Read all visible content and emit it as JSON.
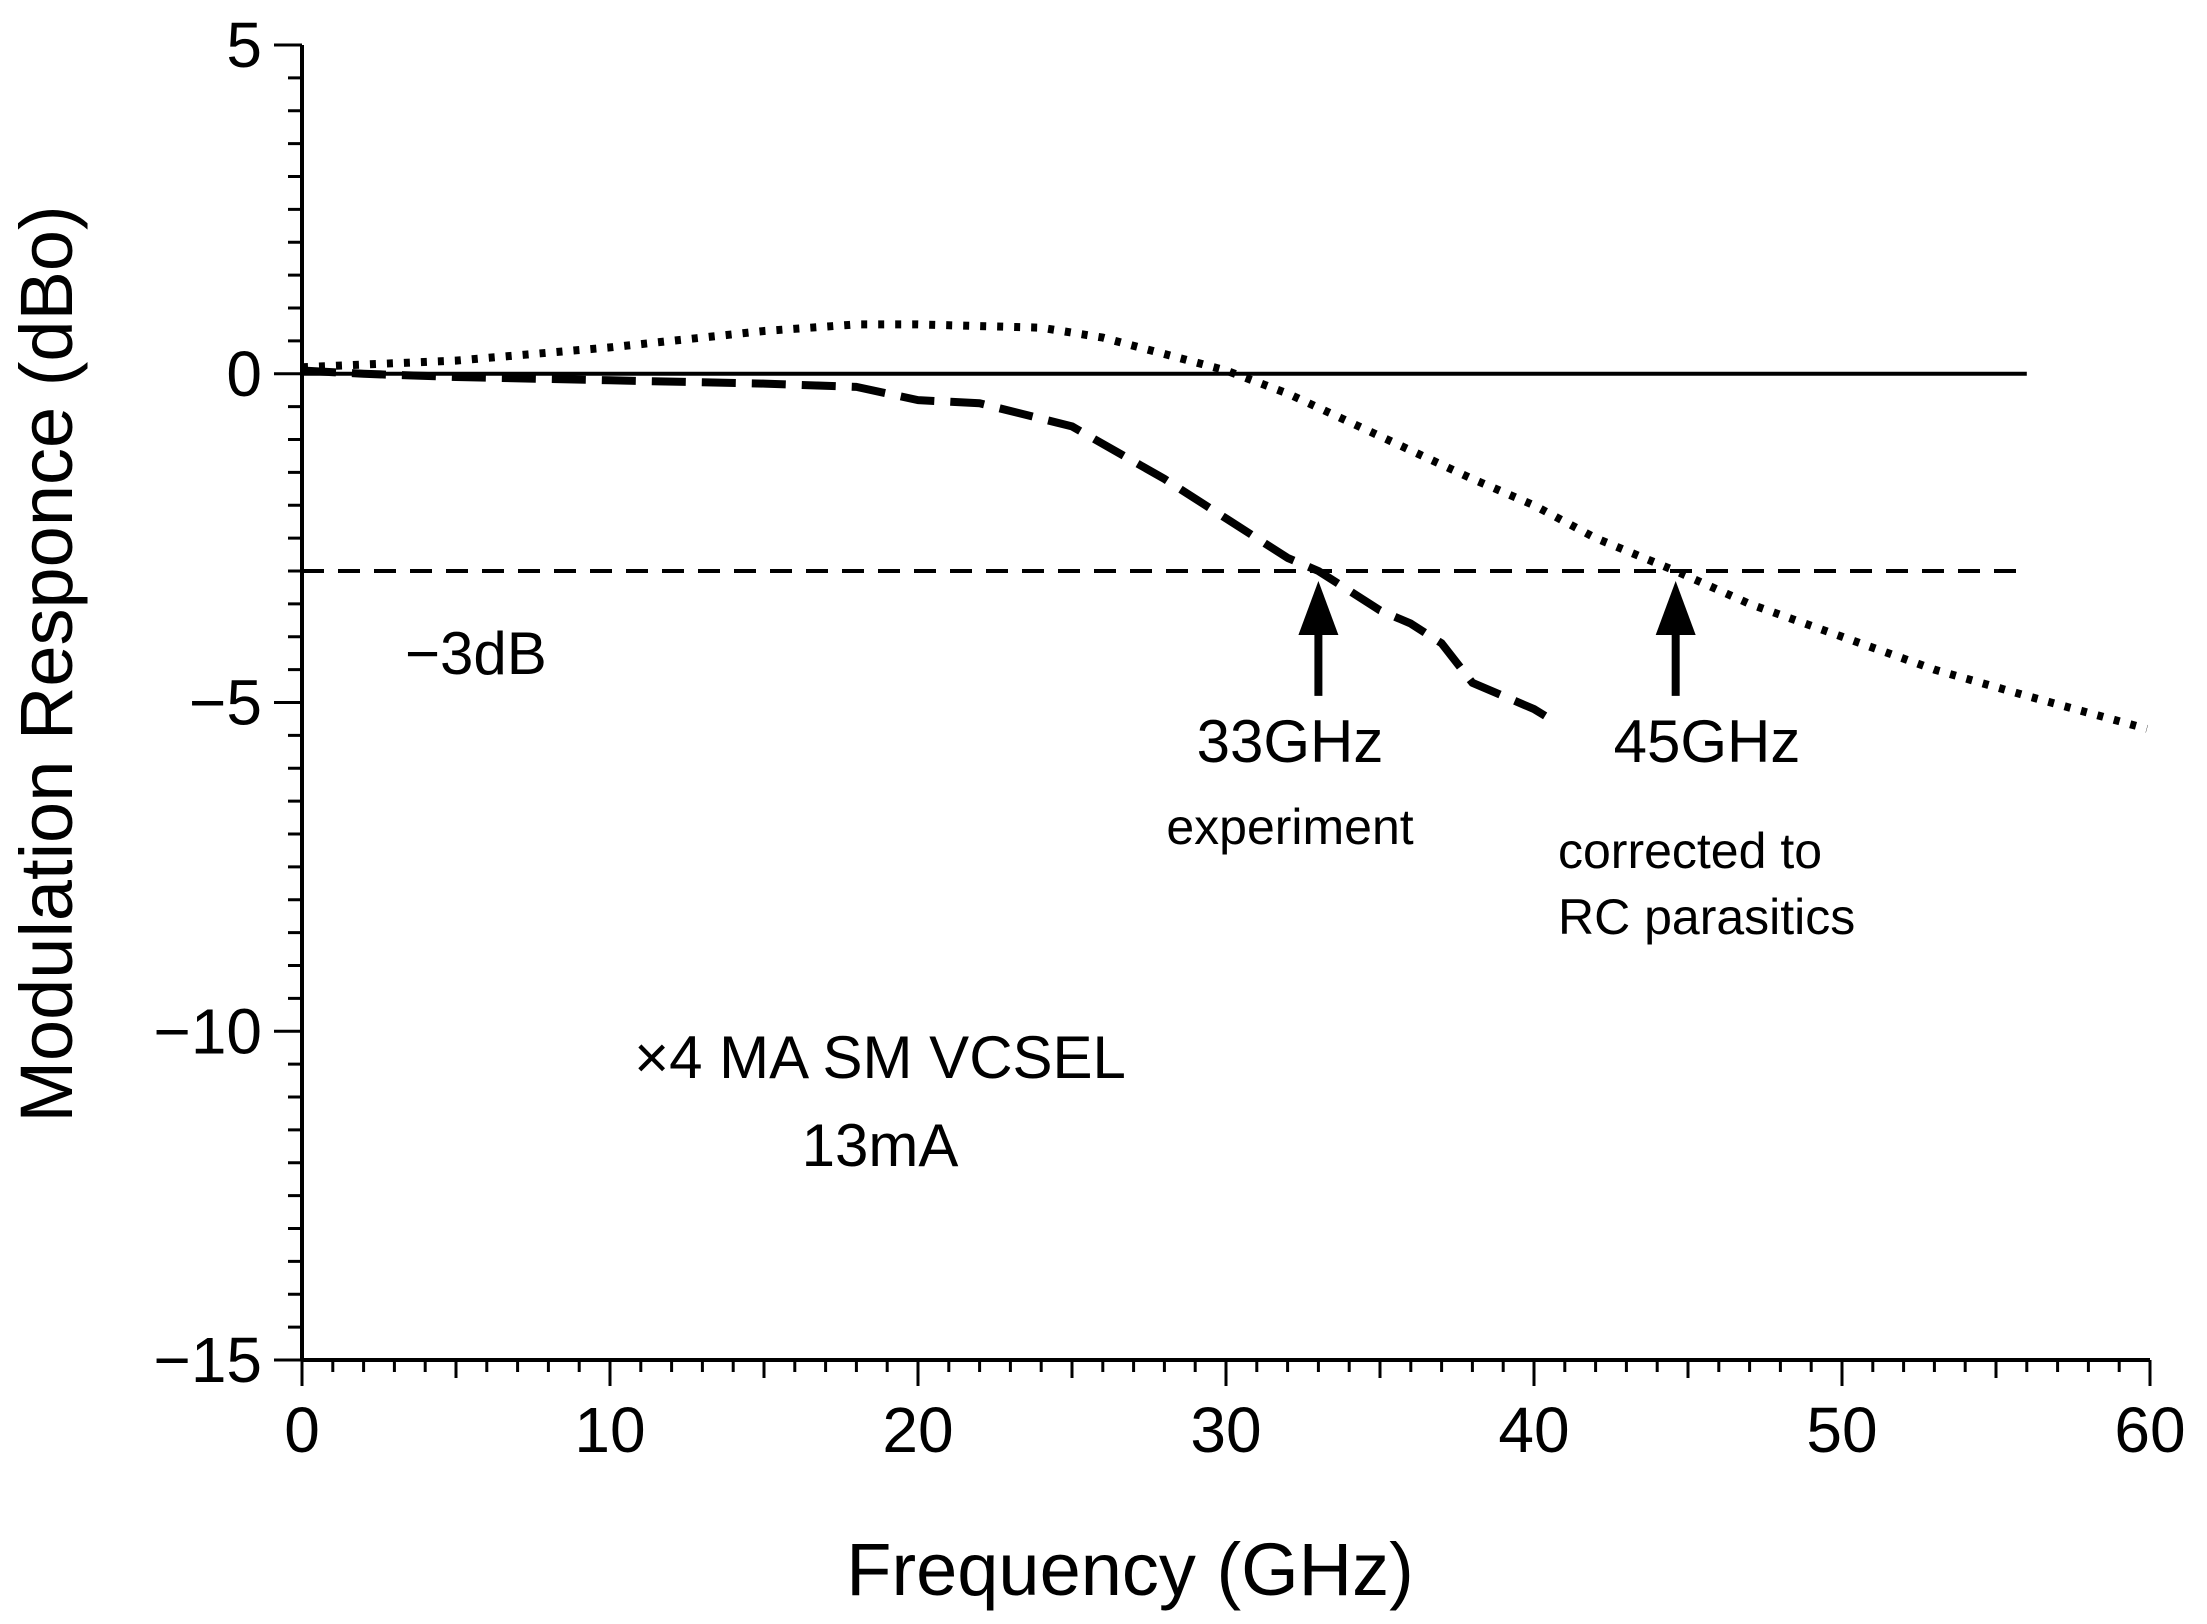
{
  "chart_data": {
    "type": "line",
    "title": "",
    "xlabel": "Frequency (GHz)",
    "ylabel": "Modulation Responce (dBo)",
    "xlim": [
      0,
      60
    ],
    "ylim": [
      -15,
      5
    ],
    "x_ticks": [
      0,
      10,
      20,
      30,
      40,
      50,
      60
    ],
    "x_tick_labels": [
      "0",
      "10",
      "20",
      "30",
      "40",
      "50",
      "60"
    ],
    "y_ticks": [
      5,
      0,
      -5,
      -10,
      -15
    ],
    "y_tick_labels": [
      "5",
      "0",
      "−5",
      "−10",
      "−15"
    ],
    "grid": false,
    "reference_lines": [
      {
        "y": 0,
        "x_range": [
          0,
          56
        ],
        "style": "solid"
      },
      {
        "y": -3,
        "x_range": [
          0,
          56
        ],
        "style": "dashed"
      }
    ],
    "series": [
      {
        "style": "dashed",
        "x": [
          0,
          2,
          5,
          10,
          15,
          18,
          20,
          22,
          25,
          28,
          30,
          32,
          33,
          34,
          35,
          36,
          37,
          38,
          39,
          40,
          40.7
        ],
        "y": [
          0.05,
          0.0,
          -0.05,
          -0.1,
          -0.15,
          -0.2,
          -0.4,
          -0.45,
          -0.8,
          -1.6,
          -2.2,
          -2.8,
          -3.0,
          -3.3,
          -3.6,
          -3.8,
          -4.1,
          -4.7,
          -4.9,
          -5.1,
          -5.3
        ]
      },
      {
        "style": "dotted",
        "x": [
          0,
          5,
          10,
          15,
          18,
          20,
          24,
          26,
          28,
          30,
          32,
          35,
          38,
          40,
          42,
          44.6,
          47,
          50,
          53,
          56,
          59.9
        ],
        "y": [
          0.1,
          0.2,
          0.4,
          0.65,
          0.75,
          0.75,
          0.7,
          0.55,
          0.3,
          0.05,
          -0.3,
          -0.95,
          -1.6,
          -2.0,
          -2.5,
          -3.0,
          -3.5,
          -4.0,
          -4.5,
          -4.9,
          -5.4
        ]
      }
    ],
    "annotations": [
      {
        "id": "minus3db",
        "text": "−3dB",
        "x": 5,
        "y": -4.3
      },
      {
        "id": "f33",
        "text": "33GHz",
        "arrow_x": 33,
        "arrow_to_y": -3,
        "arrow_from_y": -4.9
      },
      {
        "id": "experiment",
        "text": "experiment"
      },
      {
        "id": "f45",
        "text": "45GHz",
        "arrow_x": 44.6,
        "arrow_to_y": -3,
        "arrow_from_y": -4.9
      },
      {
        "id": "corrected1",
        "text": "corrected to"
      },
      {
        "id": "corrected2",
        "text": "RC parasitics"
      },
      {
        "id": "device",
        "text": "×4 MA SM VCSEL"
      },
      {
        "id": "current",
        "text": "13mA"
      }
    ]
  }
}
